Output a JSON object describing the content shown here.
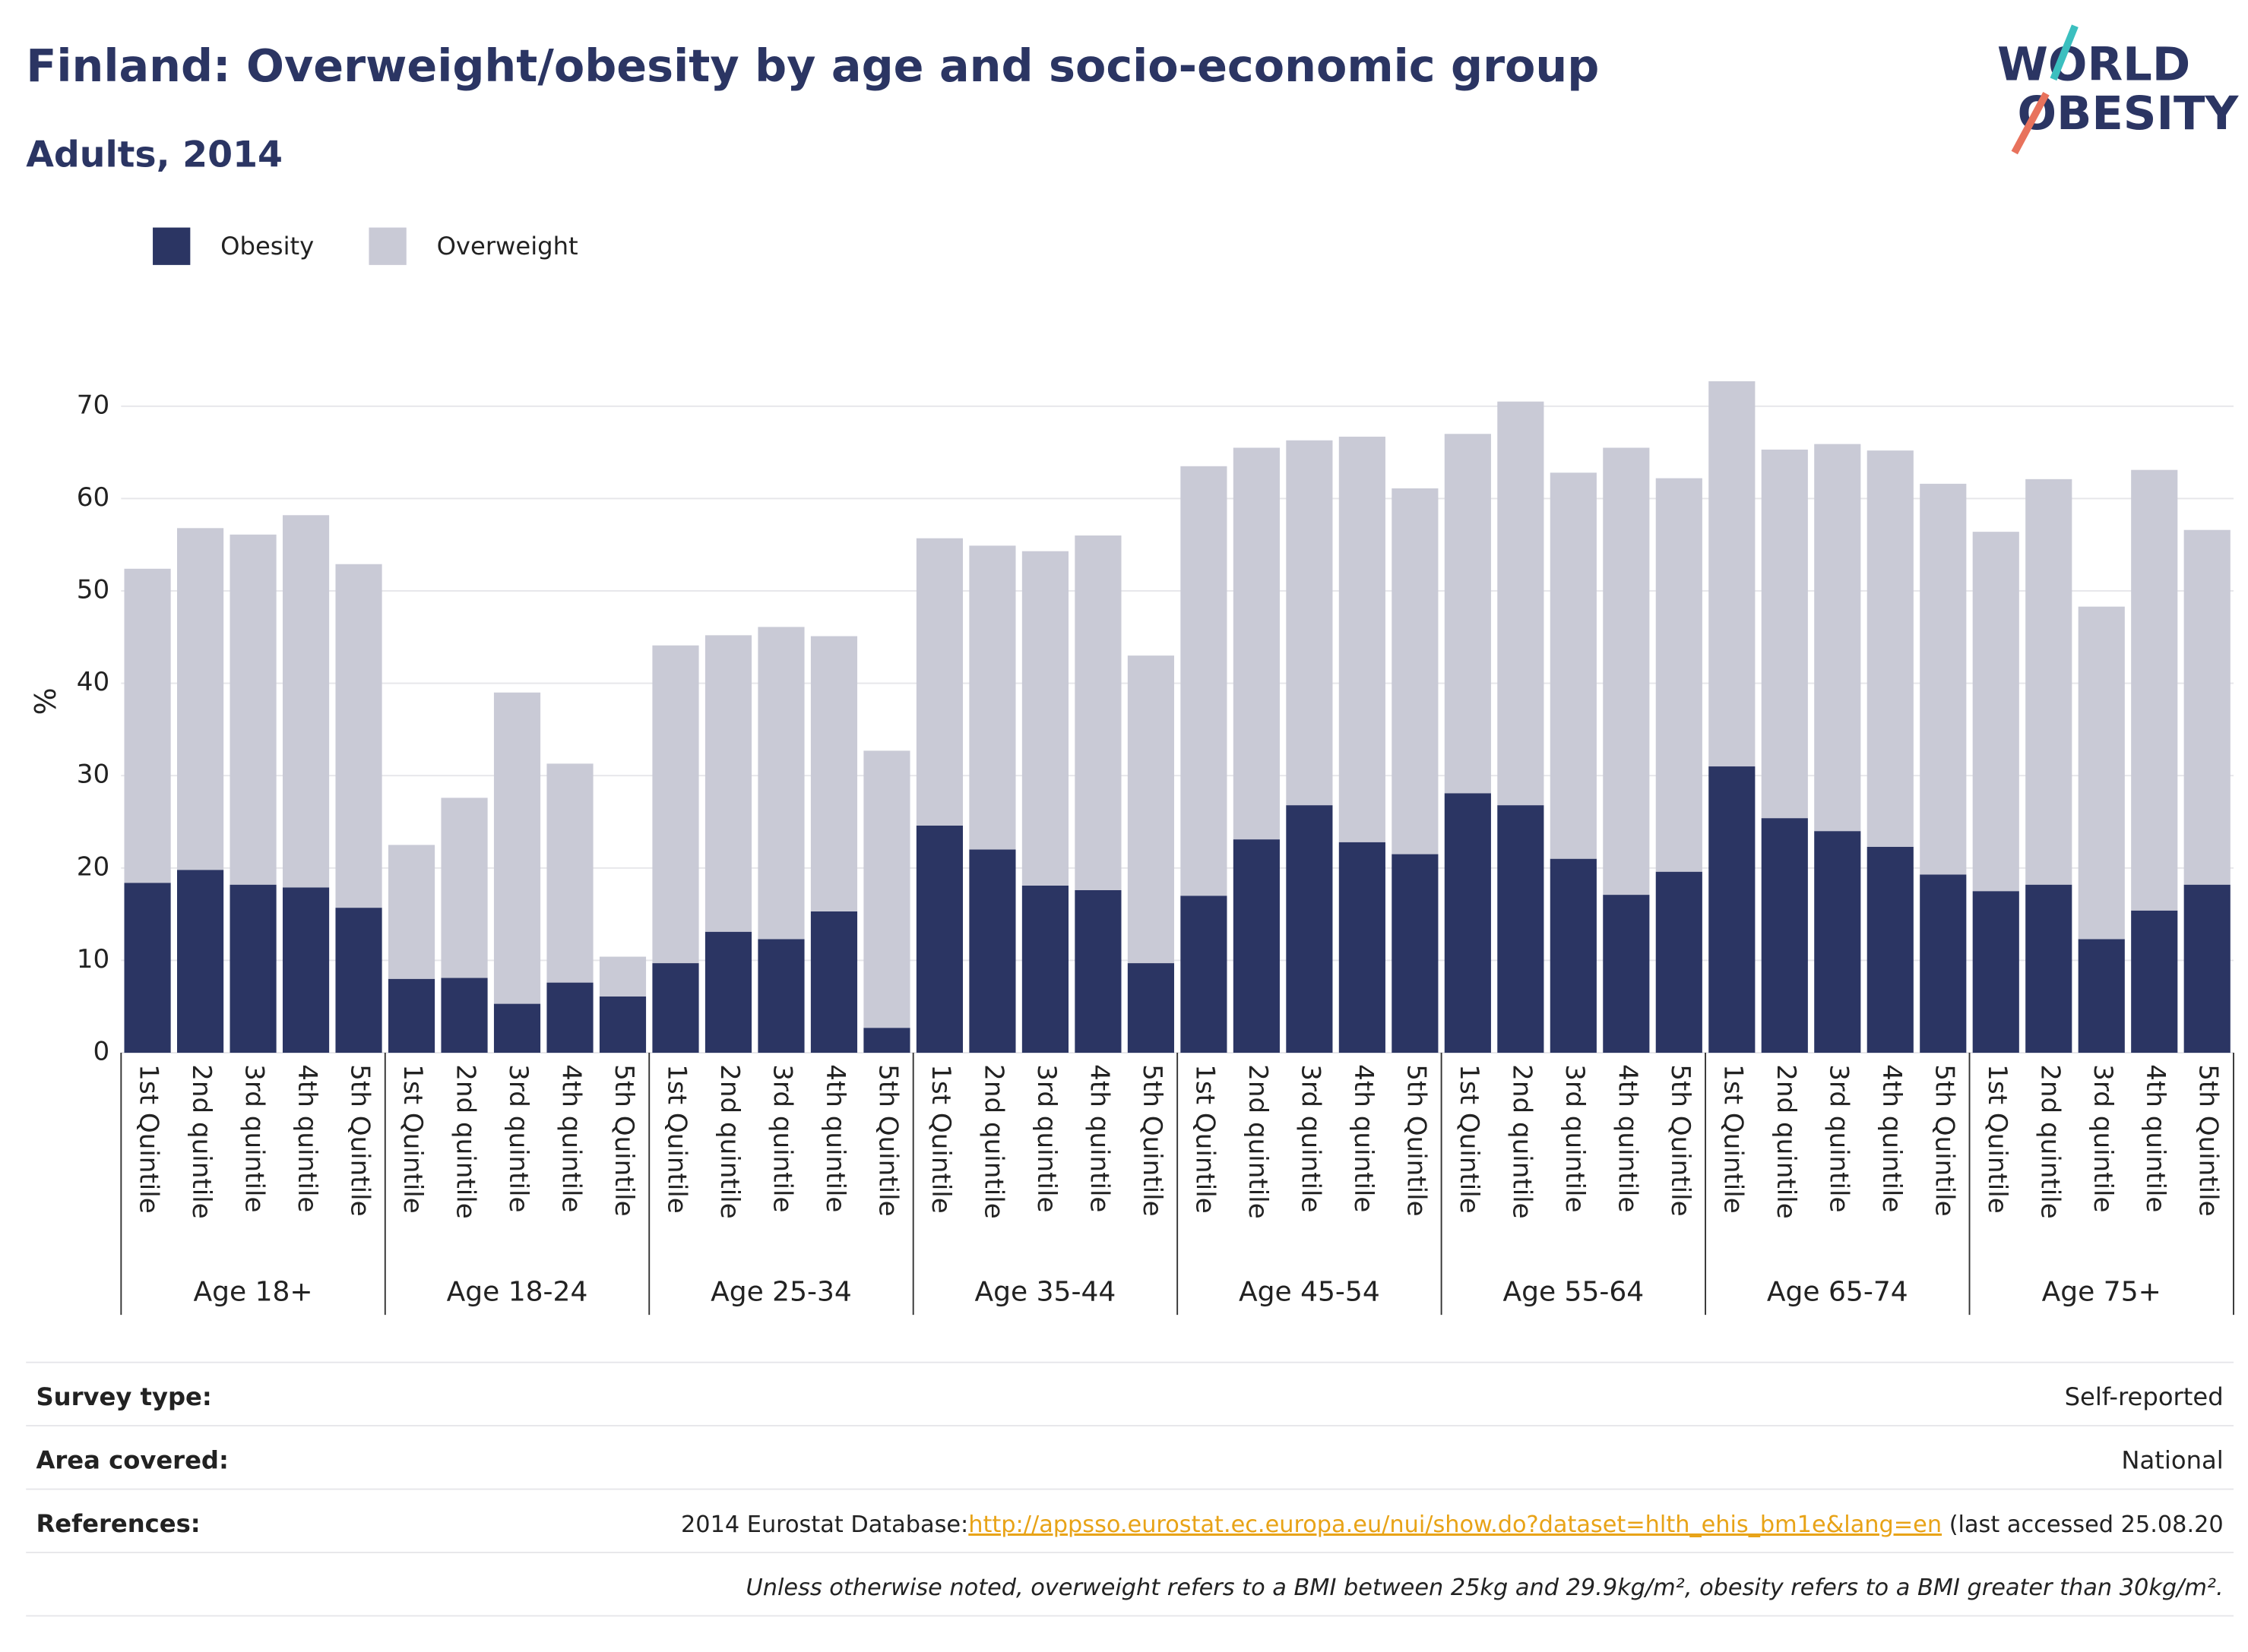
{
  "chart_data": {
    "type": "stacked_bar",
    "title": "Finland: Overweight/obesity by age and socio-economic group",
    "subtitle": "Adults, 2014",
    "y_label": "%",
    "logo": {
      "line1": "WORLD",
      "line2": "OBESITY"
    },
    "groups": [
      "Age 18+",
      "Age 18-24",
      "Age 25-34",
      "Age 35-44",
      "Age 45-54",
      "Age 55-64",
      "Age 65-74",
      "Age 75+"
    ],
    "categories": [
      "1st Quintile",
      "2nd quintile",
      "3rd quintile",
      "4th quintile",
      "5th Quintile",
      "1st Quintile",
      "2nd quintile",
      "3rd quintile",
      "4th quintile",
      "5th Quintile",
      "1st Quintile",
      "2nd quintile",
      "3rd quintile",
      "4th quintile",
      "5th Quintile",
      "1st Quintile",
      "2nd quintile",
      "3rd quintile",
      "4th quintile",
      "5th Quintile",
      "1st Quintile",
      "2nd quintile",
      "3rd quintile",
      "4th quintile",
      "5th Quintile",
      "1st Quintile",
      "2nd quintile",
      "3rd quintile",
      "4th quintile",
      "5th Quintile",
      "1st Quintile",
      "2nd quintile",
      "3rd quintile",
      "4th quintile",
      "5th Quintile",
      "1st Quintile",
      "2nd quintile",
      "3rd quintile",
      "4th quintile",
      "5th Quintile"
    ],
    "series": [
      {
        "name": "Obesity",
        "color": "#2b3563",
        "values": [
          18.4,
          19.8,
          18.2,
          17.9,
          15.7,
          8.0,
          8.1,
          5.3,
          7.6,
          6.1,
          9.7,
          13.1,
          12.3,
          15.3,
          2.7,
          24.6,
          22.0,
          18.1,
          17.6,
          9.7,
          17.0,
          23.1,
          26.8,
          22.8,
          21.5,
          28.1,
          26.8,
          21.0,
          17.1,
          19.6,
          31.0,
          25.4,
          24.0,
          22.3,
          19.3,
          17.5,
          18.2,
          12.3,
          15.4,
          18.2
        ]
      },
      {
        "name": "Overweight",
        "color": "#c9cad6",
        "values": [
          34.0,
          37.0,
          37.9,
          40.3,
          37.2,
          14.5,
          19.5,
          33.7,
          23.7,
          4.3,
          34.4,
          32.1,
          33.8,
          29.8,
          30.0,
          31.1,
          32.9,
          36.2,
          38.4,
          33.3,
          46.5,
          42.4,
          39.5,
          43.9,
          39.6,
          38.9,
          43.7,
          41.8,
          48.4,
          42.6,
          41.7,
          39.9,
          41.9,
          42.9,
          42.3,
          38.9,
          43.9,
          36.0,
          47.7,
          38.4
        ]
      }
    ],
    "ylim": [
      0,
      73
    ],
    "yticks": [
      0,
      10,
      20,
      30,
      40,
      50,
      60,
      70
    ],
    "grid": true,
    "footer": {
      "survey_type": {
        "label": "Survey type:",
        "value": "Self-reported"
      },
      "area_covered": {
        "label": "Area covered:",
        "value": "National"
      },
      "references": {
        "label": "References:",
        "text": "2014 Eurostat Database:",
        "link": "http://appsso.eurostat.ec.europa.eu/nui/show.do?dataset=hlth_ehis_bm1e&lang=en",
        "suffix": " (last accessed 25.08.20"
      },
      "note": "Unless otherwise noted, overweight refers to a BMI between 25kg and 29.9kg/m², obesity refers to a BMI greater than 30kg/m²."
    }
  }
}
